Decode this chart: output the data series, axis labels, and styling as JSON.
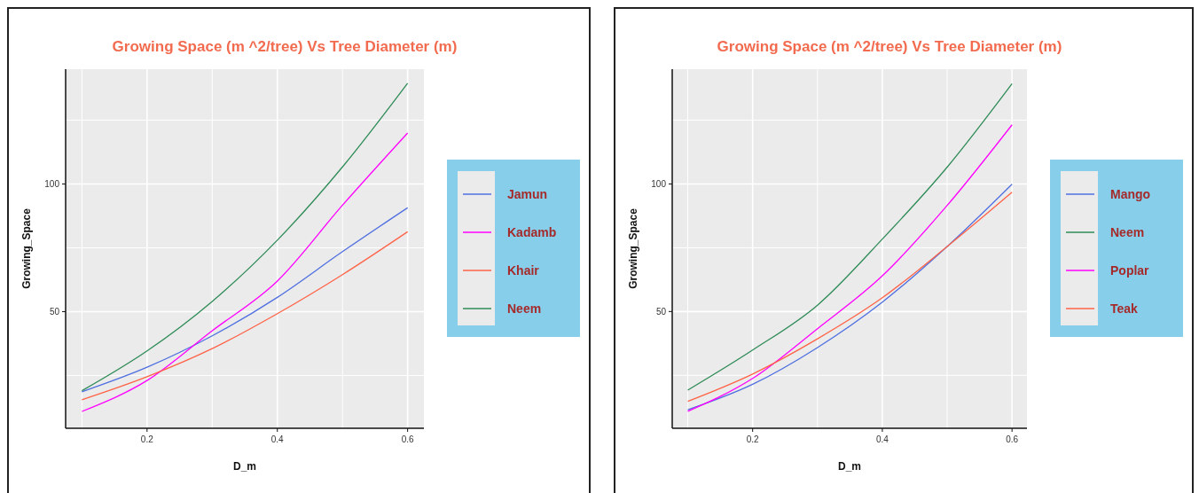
{
  "chart_data": [
    {
      "type": "line",
      "title": "Growing Space (m ^2/tree) Vs Tree Diameter (m)",
      "xlabel": "D_m",
      "ylabel": "Growing_Space",
      "x": [
        0.1,
        0.2,
        0.3,
        0.4,
        0.5,
        0.6
      ],
      "series": [
        {
          "name": "Jamun",
          "color": "#4f6fe0",
          "values": [
            18.6,
            28.2,
            40.5,
            55.6,
            73.5,
            90.7
          ]
        },
        {
          "name": "Kadamb",
          "color": "#ff00ff",
          "values": [
            10.9,
            23,
            42.5,
            62,
            91.7,
            120
          ]
        },
        {
          "name": "Khair",
          "color": "#ff6347",
          "values": [
            15.5,
            24.5,
            35.5,
            49.2,
            64.5,
            81.3
          ]
        },
        {
          "name": "Neem",
          "color": "#2e8b57",
          "values": [
            19,
            34.6,
            54,
            78,
            106.7,
            139.5
          ]
        }
      ],
      "xlim": [
        0.075,
        0.625
      ],
      "xticks": [
        {
          "value": 0.1,
          "label": null
        },
        {
          "value": 0.2,
          "label": "0.2"
        },
        {
          "value": 0.3,
          "label": null
        },
        {
          "value": 0.4,
          "label": "0.4"
        },
        {
          "value": 0.5,
          "label": null
        },
        {
          "value": 0.6,
          "label": "0.6"
        }
      ],
      "ylim": [
        4.3,
        145
      ],
      "yticks": [
        {
          "value": 25,
          "label": null
        },
        {
          "value": 50,
          "label": "50"
        },
        {
          "value": 75,
          "label": null
        },
        {
          "value": 100,
          "label": "100"
        },
        {
          "value": 125,
          "label": null
        }
      ],
      "grid": true,
      "legend": "right",
      "marker": "none",
      "line_style": "solid"
    },
    {
      "type": "line",
      "title": "Growing Space (m ^2/tree) Vs Tree Diameter (m)",
      "xlabel": "D_m",
      "ylabel": "Growing_Space",
      "x": [
        0.1,
        0.2,
        0.3,
        0.4,
        0.5,
        0.6
      ],
      "series": [
        {
          "name": "Mango",
          "color": "#4f6fe0",
          "values": [
            11.5,
            21.5,
            35.9,
            53.7,
            75.5,
            99.9
          ]
        },
        {
          "name": "Neem",
          "color": "#2e8b57",
          "values": [
            19.2,
            34.9,
            52.5,
            78.4,
            106.6,
            139.3
          ]
        },
        {
          "name": "Poplar",
          "color": "#ff00ff",
          "values": [
            10.9,
            23.8,
            43.3,
            64,
            91.6,
            123.2
          ]
        },
        {
          "name": "Teak",
          "color": "#ff6347",
          "values": [
            14.8,
            25.5,
            39.3,
            55.4,
            75.5,
            96.8
          ]
        }
      ],
      "xlim": [
        0.076,
        0.623
      ],
      "xticks": [
        {
          "value": 0.1,
          "label": null
        },
        {
          "value": 0.2,
          "label": "0.2"
        },
        {
          "value": 0.3,
          "label": null
        },
        {
          "value": 0.4,
          "label": "0.4"
        },
        {
          "value": 0.5,
          "label": null
        },
        {
          "value": 0.6,
          "label": "0.6"
        }
      ],
      "ylim": [
        4.25,
        145
      ],
      "yticks": [
        {
          "value": 25,
          "label": null
        },
        {
          "value": 50,
          "label": "50"
        },
        {
          "value": 75,
          "label": null
        },
        {
          "value": 100,
          "label": "100"
        },
        {
          "value": 125,
          "label": null
        }
      ],
      "grid": true,
      "legend": "right",
      "marker": "none",
      "line_style": "solid"
    }
  ]
}
